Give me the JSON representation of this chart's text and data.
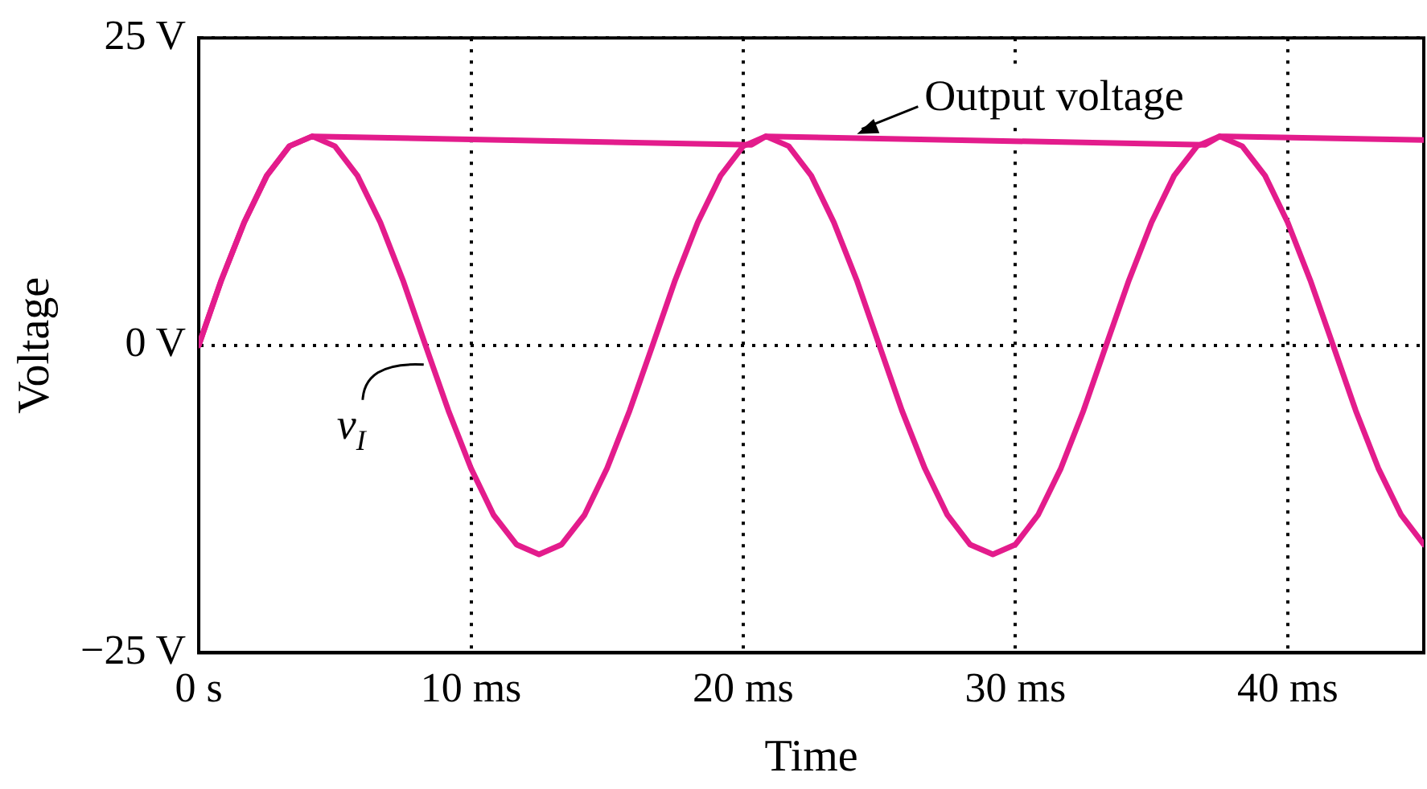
{
  "chart_data": {
    "type": "line",
    "xlabel": "Time",
    "ylabel": "Voltage",
    "xlim": [
      0,
      45
    ],
    "ylim": [
      -25,
      25
    ],
    "xticks": [
      {
        "value": 0,
        "label": "0 s"
      },
      {
        "value": 10,
        "label": "10 ms"
      },
      {
        "value": 20,
        "label": "20 ms"
      },
      {
        "value": 30,
        "label": "30 ms"
      },
      {
        "value": 40,
        "label": "40 ms"
      }
    ],
    "yticks": [
      {
        "value": -25,
        "label": "−25 V"
      },
      {
        "value": 0,
        "label": "0 V"
      },
      {
        "value": 25,
        "label": "25 V"
      }
    ],
    "grid": true,
    "legend": false,
    "marker": "none",
    "series": [
      {
        "color": "#e31c8c",
        "x": [
          0,
          0.83,
          1.67,
          2.5,
          3.33,
          4.17,
          5,
          5.83,
          6.67,
          7.5,
          8.33,
          9.17,
          10,
          10.83,
          11.67,
          12.5,
          13.33,
          14.17,
          15,
          15.83,
          16.67,
          17.5,
          18.33,
          19.17,
          20,
          20.83,
          21.67,
          22.5,
          23.33,
          24.17,
          25,
          25.83,
          26.67,
          27.5,
          28.33,
          29.17,
          30,
          30.83,
          31.67,
          32.5,
          33.33,
          34.17,
          35,
          35.83,
          36.67,
          37.5,
          38.33,
          39.17,
          40,
          40.83,
          41.67,
          42.5,
          43.33,
          44.17,
          45
        ],
        "values": [
          0,
          5.3,
          10,
          13.8,
          16.2,
          17,
          16.2,
          13.8,
          10,
          5.3,
          0,
          -5.3,
          -10,
          -13.8,
          -16.2,
          -17,
          -16.2,
          -13.8,
          -10,
          -5.3,
          0,
          5.3,
          10,
          13.8,
          16.2,
          17,
          16.2,
          13.8,
          10,
          5.3,
          0,
          -5.3,
          -10,
          -13.8,
          -16.2,
          -17,
          -16.2,
          -13.8,
          -10,
          -5.3,
          0,
          5.3,
          10,
          13.8,
          16.2,
          17,
          16.2,
          13.8,
          10,
          5.3,
          0,
          -5.3,
          -10,
          -13.8,
          -16.2
        ]
      },
      {
        "color": "#e31c8c",
        "x": [
          0,
          0.83,
          1.67,
          2.5,
          3.33,
          4.17,
          20.3,
          20.83,
          36.97,
          37.5,
          45
        ],
        "values": [
          0,
          5.3,
          10,
          13.8,
          16.2,
          17,
          16.3,
          17,
          16.3,
          17,
          16.7
        ]
      }
    ],
    "annotations": [
      {
        "text": "Output voltage",
        "x": 24,
        "y": 16.8
      },
      {
        "text": "v$_{I}$",
        "x": 8.5,
        "y": 0
      }
    ]
  }
}
